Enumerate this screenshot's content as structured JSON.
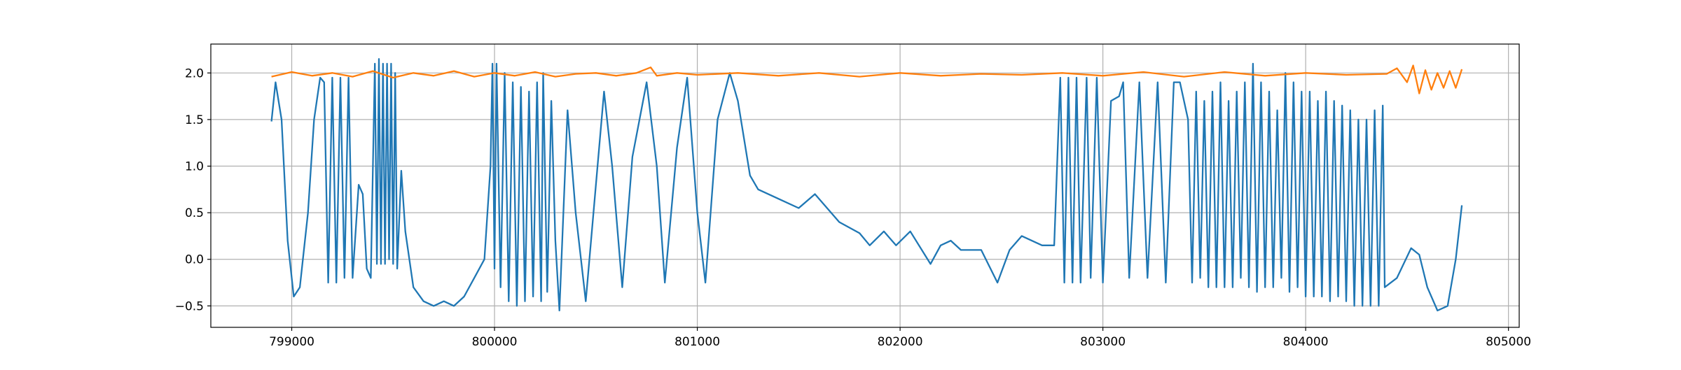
{
  "chart_data": {
    "type": "line",
    "grid": true,
    "xlim": [
      798601,
      805053
    ],
    "ylim": [
      -0.73,
      2.31
    ],
    "xticks": [
      799000,
      800000,
      801000,
      802000,
      803000,
      804000,
      805000
    ],
    "yticks": [
      {
        "value": -0.5,
        "label": "−0.5"
      },
      {
        "value": 0,
        "label": "0.0"
      },
      {
        "value": 0.5,
        "label": "0.5"
      },
      {
        "value": 1,
        "label": "1.0"
      },
      {
        "value": 1.5,
        "label": "1.5"
      },
      {
        "value": 2,
        "label": "2.0"
      }
    ],
    "series": [
      {
        "color": "#1f77b4",
        "x": [
          798900,
          798920,
          798950,
          798980,
          799010,
          799040,
          799080,
          799110,
          799140,
          799160,
          799180,
          799200,
          799220,
          799240,
          799260,
          799280,
          799300,
          799330,
          799350,
          799370,
          799390,
          799410,
          799420,
          799430,
          799440,
          799450,
          799460,
          799470,
          799480,
          799490,
          799500,
          799510,
          799520,
          799540,
          799560,
          799600,
          799650,
          799700,
          799750,
          799800,
          799850,
          799900,
          799950,
          799980,
          799990,
          800000,
          800010,
          800030,
          800050,
          800070,
          800090,
          800110,
          800130,
          800150,
          800170,
          800190,
          800210,
          800230,
          800240,
          800260,
          800280,
          800300,
          800320,
          800360,
          800400,
          800450,
          800500,
          800540,
          800580,
          800630,
          800680,
          800750,
          800800,
          800840,
          800900,
          800950,
          801000,
          801040,
          801100,
          801160,
          801200,
          801260,
          801300,
          801400,
          801500,
          801580,
          801700,
          801800,
          801850,
          801920,
          801980,
          802050,
          802150,
          802200,
          802250,
          802300,
          802400,
          802480,
          802540,
          802600,
          802700,
          802760,
          802790,
          802810,
          802830,
          802850,
          802870,
          802890,
          802920,
          802940,
          802970,
          803000,
          803040,
          803080,
          803100,
          803130,
          803180,
          803220,
          803270,
          803310,
          803350,
          803380,
          803420,
          803440,
          803460,
          803480,
          803500,
          803520,
          803540,
          803560,
          803580,
          803600,
          803620,
          803640,
          803660,
          803680,
          803700,
          803720,
          803740,
          803760,
          803780,
          803800,
          803820,
          803840,
          803860,
          803880,
          803900,
          803920,
          803940,
          803960,
          803980,
          804000,
          804020,
          804040,
          804060,
          804080,
          804100,
          804120,
          804140,
          804160,
          804180,
          804200,
          804220,
          804240,
          804260,
          804280,
          804300,
          804320,
          804340,
          804360,
          804380,
          804390,
          804450,
          804520,
          804560,
          804600,
          804650,
          804700,
          804740,
          804770
        ],
        "values": [
          1.48,
          1.9,
          1.5,
          0.2,
          -0.4,
          -0.3,
          0.5,
          1.5,
          1.95,
          1.9,
          -0.25,
          1.95,
          -0.25,
          1.95,
          -0.2,
          1.95,
          -0.2,
          0.8,
          0.7,
          -0.1,
          -0.2,
          2.1,
          -0.05,
          2.15,
          -0.05,
          2.1,
          -0.05,
          2.1,
          0.0,
          2.1,
          -0.05,
          2.0,
          -0.1,
          0.95,
          0.3,
          -0.3,
          -0.45,
          -0.5,
          -0.45,
          -0.5,
          -0.4,
          -0.2,
          0.0,
          1.0,
          2.1,
          -0.1,
          2.1,
          -0.3,
          2.0,
          -0.45,
          1.9,
          -0.5,
          1.85,
          -0.45,
          1.8,
          -0.4,
          1.9,
          -0.45,
          2.0,
          -0.35,
          1.7,
          0.2,
          -0.55,
          1.6,
          0.5,
          -0.45,
          0.8,
          1.8,
          1.0,
          -0.3,
          1.1,
          1.9,
          1.0,
          -0.25,
          1.2,
          1.95,
          0.5,
          -0.25,
          1.5,
          2.0,
          1.7,
          0.9,
          0.75,
          0.65,
          0.55,
          0.7,
          0.4,
          0.28,
          0.15,
          0.3,
          0.15,
          0.3,
          -0.05,
          0.15,
          0.2,
          0.1,
          0.1,
          -0.25,
          0.1,
          0.25,
          0.15,
          0.15,
          1.95,
          -0.25,
          1.95,
          -0.25,
          1.95,
          -0.25,
          1.95,
          -0.2,
          1.95,
          -0.25,
          1.7,
          1.75,
          1.9,
          -0.2,
          1.9,
          -0.2,
          1.9,
          -0.25,
          1.9,
          1.9,
          1.5,
          -0.25,
          1.8,
          -0.2,
          1.7,
          -0.3,
          1.8,
          -0.3,
          1.9,
          -0.3,
          1.7,
          -0.3,
          1.8,
          -0.2,
          1.9,
          -0.3,
          2.1,
          -0.35,
          1.9,
          -0.3,
          1.8,
          -0.3,
          1.6,
          -0.2,
          2.0,
          -0.35,
          1.9,
          -0.3,
          1.8,
          -0.4,
          1.8,
          -0.4,
          1.7,
          -0.4,
          1.8,
          -0.45,
          1.7,
          -0.4,
          1.65,
          -0.45,
          1.6,
          -0.5,
          1.5,
          -0.5,
          1.5,
          -0.5,
          1.6,
          -0.5,
          1.65,
          -0.3,
          -0.2,
          0.12,
          0.05,
          -0.3,
          -0.55,
          -0.5,
          0.0,
          0.58
        ]
      },
      {
        "color": "#ff7f0e",
        "x": [
          798900,
          799000,
          799100,
          799200,
          799300,
          799400,
          799500,
          799600,
          799700,
          799800,
          799900,
          800000,
          800100,
          800200,
          800300,
          800400,
          800500,
          800600,
          800700,
          800770,
          800800,
          800900,
          801000,
          801200,
          801400,
          801600,
          801800,
          802000,
          802200,
          802400,
          802600,
          802800,
          803000,
          803200,
          803400,
          803600,
          803800,
          804000,
          804200,
          804400,
          804450,
          804500,
          804530,
          804560,
          804590,
          804620,
          804650,
          804680,
          804710,
          804740,
          804770
        ],
        "values": [
          1.96,
          2.01,
          1.97,
          2.0,
          1.96,
          2.02,
          1.95,
          2.0,
          1.97,
          2.02,
          1.96,
          2.0,
          1.97,
          2.01,
          1.96,
          1.99,
          2.0,
          1.97,
          2.0,
          2.06,
          1.97,
          2.0,
          1.98,
          2.0,
          1.97,
          2.0,
          1.96,
          2.0,
          1.97,
          1.99,
          1.98,
          2.0,
          1.97,
          2.01,
          1.96,
          2.01,
          1.97,
          2.0,
          1.98,
          1.99,
          2.05,
          1.9,
          2.08,
          1.78,
          2.03,
          1.82,
          2.0,
          1.84,
          2.02,
          1.84,
          2.04
        ]
      }
    ]
  }
}
